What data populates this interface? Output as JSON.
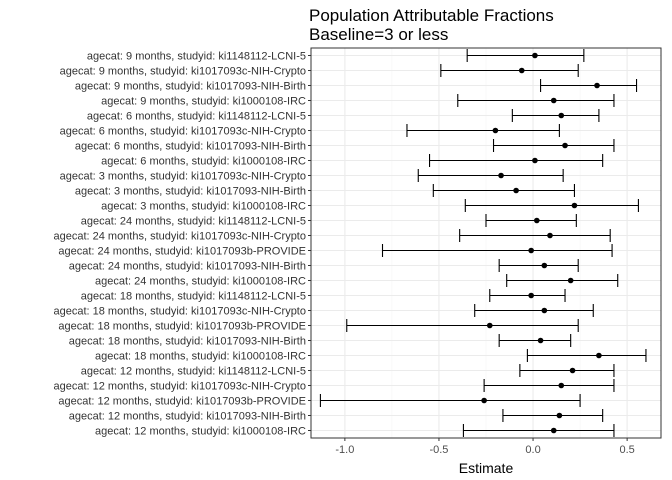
{
  "chart_data": {
    "type": "scatter",
    "title": "Population Attributable Fractions",
    "subtitle": "Baseline=3 or less",
    "xlabel": "Estimate",
    "ylabel": "",
    "xlim": [
      -1.18,
      0.68
    ],
    "xticks": [
      -1.0,
      -0.5,
      0.0,
      0.5
    ],
    "xtick_labels": [
      "-1.0",
      "-0.5",
      "0.0",
      "0.5"
    ],
    "grid": true,
    "error_bars": true,
    "points": [
      {
        "label": "agecat: 9 months, studyid: ki1148112-LCNI-5",
        "estimate": 0.01,
        "lower": -0.35,
        "upper": 0.27
      },
      {
        "label": "agecat: 9 months, studyid: ki1017093c-NIH-Crypto",
        "estimate": -0.06,
        "lower": -0.49,
        "upper": 0.24
      },
      {
        "label": "agecat: 9 months, studyid: ki1017093-NIH-Birth",
        "estimate": 0.34,
        "lower": 0.04,
        "upper": 0.55
      },
      {
        "label": "agecat: 9 months, studyid: ki1000108-IRC",
        "estimate": 0.11,
        "lower": -0.4,
        "upper": 0.43
      },
      {
        "label": "agecat: 6 months, studyid: ki1148112-LCNI-5",
        "estimate": 0.15,
        "lower": -0.11,
        "upper": 0.35
      },
      {
        "label": "agecat: 6 months, studyid: ki1017093c-NIH-Crypto",
        "estimate": -0.2,
        "lower": -0.67,
        "upper": 0.14
      },
      {
        "label": "agecat: 6 months, studyid: ki1017093-NIH-Birth",
        "estimate": 0.17,
        "lower": -0.21,
        "upper": 0.43
      },
      {
        "label": "agecat: 6 months, studyid: ki1000108-IRC",
        "estimate": 0.01,
        "lower": -0.55,
        "upper": 0.37
      },
      {
        "label": "agecat: 3 months, studyid: ki1017093c-NIH-Crypto",
        "estimate": -0.17,
        "lower": -0.61,
        "upper": 0.16
      },
      {
        "label": "agecat: 3 months, studyid: ki1017093-NIH-Birth",
        "estimate": -0.09,
        "lower": -0.53,
        "upper": 0.22
      },
      {
        "label": "agecat: 3 months, studyid: ki1000108-IRC",
        "estimate": 0.22,
        "lower": -0.36,
        "upper": 0.56
      },
      {
        "label": "agecat: 24 months, studyid: ki1148112-LCNI-5",
        "estimate": 0.02,
        "lower": -0.25,
        "upper": 0.23
      },
      {
        "label": "agecat: 24 months, studyid: ki1017093c-NIH-Crypto",
        "estimate": 0.09,
        "lower": -0.39,
        "upper": 0.41
      },
      {
        "label": "agecat: 24 months, studyid: ki1017093b-PROVIDE",
        "estimate": -0.01,
        "lower": -0.8,
        "upper": 0.42
      },
      {
        "label": "agecat: 24 months, studyid: ki1017093-NIH-Birth",
        "estimate": 0.06,
        "lower": -0.18,
        "upper": 0.24
      },
      {
        "label": "agecat: 24 months, studyid: ki1000108-IRC",
        "estimate": 0.2,
        "lower": -0.14,
        "upper": 0.45
      },
      {
        "label": "agecat: 18 months, studyid: ki1148112-LCNI-5",
        "estimate": -0.01,
        "lower": -0.23,
        "upper": 0.17
      },
      {
        "label": "agecat: 18 months, studyid: ki1017093c-NIH-Crypto",
        "estimate": 0.06,
        "lower": -0.31,
        "upper": 0.32
      },
      {
        "label": "agecat: 18 months, studyid: ki1017093b-PROVIDE",
        "estimate": -0.23,
        "lower": -0.99,
        "upper": 0.24
      },
      {
        "label": "agecat: 18 months, studyid: ki1017093-NIH-Birth",
        "estimate": 0.04,
        "lower": -0.18,
        "upper": 0.2
      },
      {
        "label": "agecat: 18 months, studyid: ki1000108-IRC",
        "estimate": 0.35,
        "lower": -0.03,
        "upper": 0.6
      },
      {
        "label": "agecat: 12 months, studyid: ki1148112-LCNI-5",
        "estimate": 0.21,
        "lower": -0.07,
        "upper": 0.43
      },
      {
        "label": "agecat: 12 months, studyid: ki1017093c-NIH-Crypto",
        "estimate": 0.15,
        "lower": -0.26,
        "upper": 0.43
      },
      {
        "label": "agecat: 12 months, studyid: ki1017093b-PROVIDE",
        "estimate": -0.26,
        "lower": -1.13,
        "upper": 0.25
      },
      {
        "label": "agecat: 12 months, studyid: ki1017093-NIH-Birth",
        "estimate": 0.14,
        "lower": -0.16,
        "upper": 0.37
      },
      {
        "label": "agecat: 12 months, studyid: ki1000108-IRC",
        "estimate": 0.11,
        "lower": -0.37,
        "upper": 0.43
      }
    ]
  },
  "colors": {
    "panel_border": "#333333",
    "grid_major": "#ebebeb",
    "grid_minor": "#f5f5f5",
    "point": "#000000",
    "errorbar": "#000000"
  }
}
